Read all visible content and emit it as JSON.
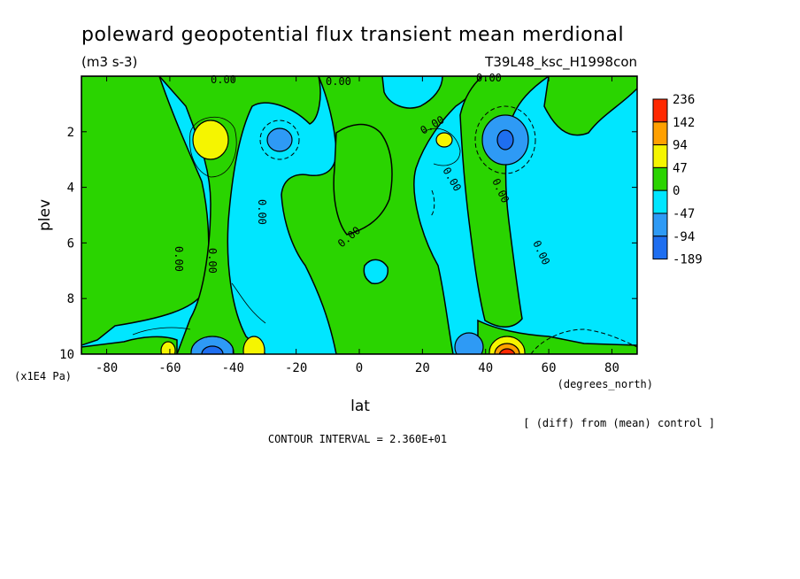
{
  "chart_data": {
    "type": "heatmap",
    "title": "poleward geopotential flux transient mean merdional",
    "subtitle": "(m3 s-3)",
    "experiment": "T39L48_ksc_H1998con",
    "xlabel": "lat",
    "x_unit": "(degrees_north)",
    "ylabel": "plev",
    "y_unit": "(x1E4 Pa)",
    "xlim": [
      -88,
      88
    ],
    "ylim": [
      10,
      0
    ],
    "x_ticks": [
      -80,
      -60,
      -40,
      -20,
      0,
      20,
      40,
      60,
      80
    ],
    "y_ticks": [
      2,
      4,
      6,
      8,
      10
    ],
    "contour_label": "0.00",
    "levels": [
      -189,
      -94,
      -47,
      0,
      47,
      94,
      142,
      236
    ],
    "level_colors": [
      "#1e6ef0",
      "#2e9af5",
      "#00e6ff",
      "#2ad400",
      "#f5f500",
      "#ffa000",
      "#ff2800"
    ],
    "colorbar_labels": [
      "236",
      "142",
      "94",
      "47",
      "0",
      "-47",
      "-94",
      "-189"
    ],
    "note": "[ (diff) from (mean) control ]",
    "contour_interval": "CONTOUR INTERVAL = 2.360E+01"
  }
}
